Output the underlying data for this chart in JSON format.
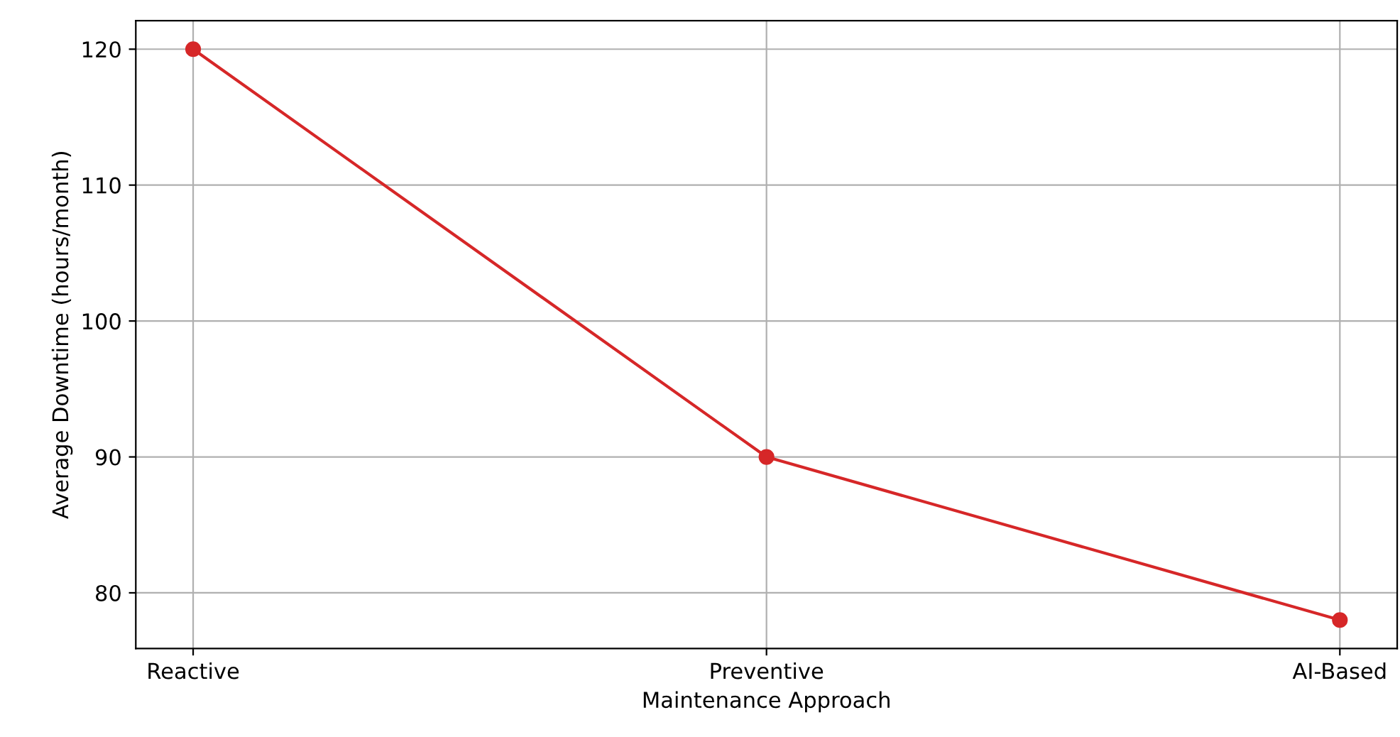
{
  "chart_data": {
    "type": "line",
    "xlabel": "Maintenance Approach",
    "ylabel": "Average Downtime (hours/month)",
    "categories": [
      "Reactive",
      "Preventive",
      "AI-Based"
    ],
    "series": [
      {
        "color": "#d62728",
        "values": [
          120,
          90,
          78
        ]
      }
    ],
    "ylim": [
      75.9,
      122.1
    ],
    "yticks": [
      80,
      90,
      100,
      110,
      120
    ],
    "grid": true,
    "marker": "circle",
    "line_style": "solid"
  }
}
